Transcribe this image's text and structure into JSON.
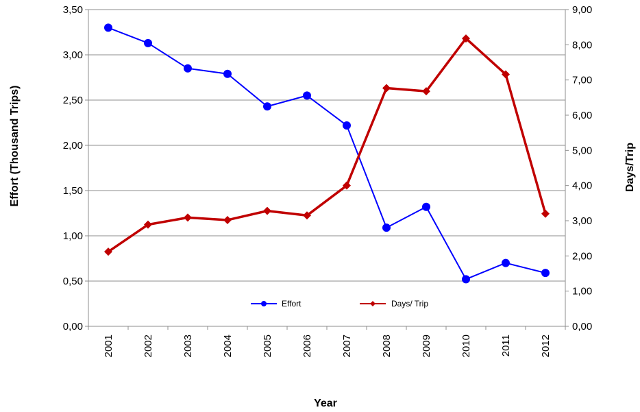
{
  "chart_data": {
    "type": "line",
    "categories": [
      "2001",
      "2002",
      "2003",
      "2004",
      "2005",
      "2006",
      "2007",
      "2008",
      "2009",
      "2010",
      "2011",
      "2012"
    ],
    "xlabel": "Year",
    "ylabel": "Effort (Thousand Trips)",
    "y2label": "Days/Trip",
    "ylim": [
      0,
      3.5
    ],
    "y2lim": [
      0,
      9
    ],
    "yticks": [
      "0,00",
      "0,50",
      "1,00",
      "1,50",
      "2,00",
      "2,50",
      "3,00",
      "3,50"
    ],
    "y2ticks": [
      "0,00",
      "1,00",
      "2,00",
      "3,00",
      "4,00",
      "5,00",
      "6,00",
      "7,00",
      "8,00",
      "9,00"
    ],
    "grid": true,
    "legend_position": "bottom-center-inside",
    "series": [
      {
        "name": "Effort",
        "axis": "left",
        "color": "#0000ff",
        "marker": "circle",
        "values": [
          3.3,
          3.13,
          2.85,
          2.79,
          2.43,
          2.55,
          2.22,
          1.09,
          1.32,
          0.52,
          0.7,
          0.59
        ]
      },
      {
        "name": "Days/ Trip",
        "axis": "right",
        "color": "#c00000",
        "marker": "diamond",
        "values": [
          2.12,
          2.89,
          3.09,
          3.02,
          3.28,
          3.15,
          4.0,
          6.77,
          6.68,
          8.18,
          7.16,
          3.2
        ]
      }
    ]
  }
}
